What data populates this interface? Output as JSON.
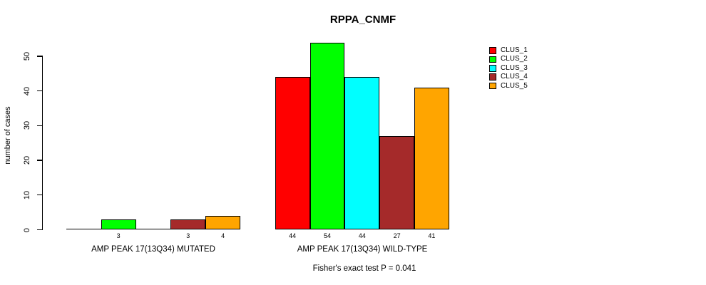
{
  "chart_data": {
    "type": "bar",
    "title": "RPPA_CNMF",
    "xlabel": "",
    "ylabel": "number of cases",
    "ylim": [
      0,
      50
    ],
    "yticks": [
      0,
      10,
      20,
      30,
      40,
      50
    ],
    "grid": false,
    "legend_position": "top-right",
    "background": "#ffffff",
    "axis_color": "#000000",
    "categories": [
      "AMP PEAK 17(13Q34) MUTATED",
      "AMP PEAK 17(13Q34) WILD-TYPE"
    ],
    "series": [
      {
        "name": "CLUS_1",
        "color": "#ff0000",
        "values": [
          0,
          44
        ]
      },
      {
        "name": "CLUS_2",
        "color": "#00ff00",
        "values": [
          3,
          54
        ]
      },
      {
        "name": "CLUS_3",
        "color": "#00ffff",
        "values": [
          0,
          44
        ]
      },
      {
        "name": "CLUS_4",
        "color": "#a52a2a",
        "values": [
          3,
          27
        ]
      },
      {
        "name": "CLUS_5",
        "color": "#ffa500",
        "values": [
          4,
          41
        ]
      }
    ],
    "bar_labels": [
      [
        "",
        "3",
        "",
        "3",
        "4"
      ],
      [
        "44",
        "54",
        "44",
        "27",
        "41"
      ]
    ],
    "annotation": "Fisher's exact test P = 0.041"
  }
}
